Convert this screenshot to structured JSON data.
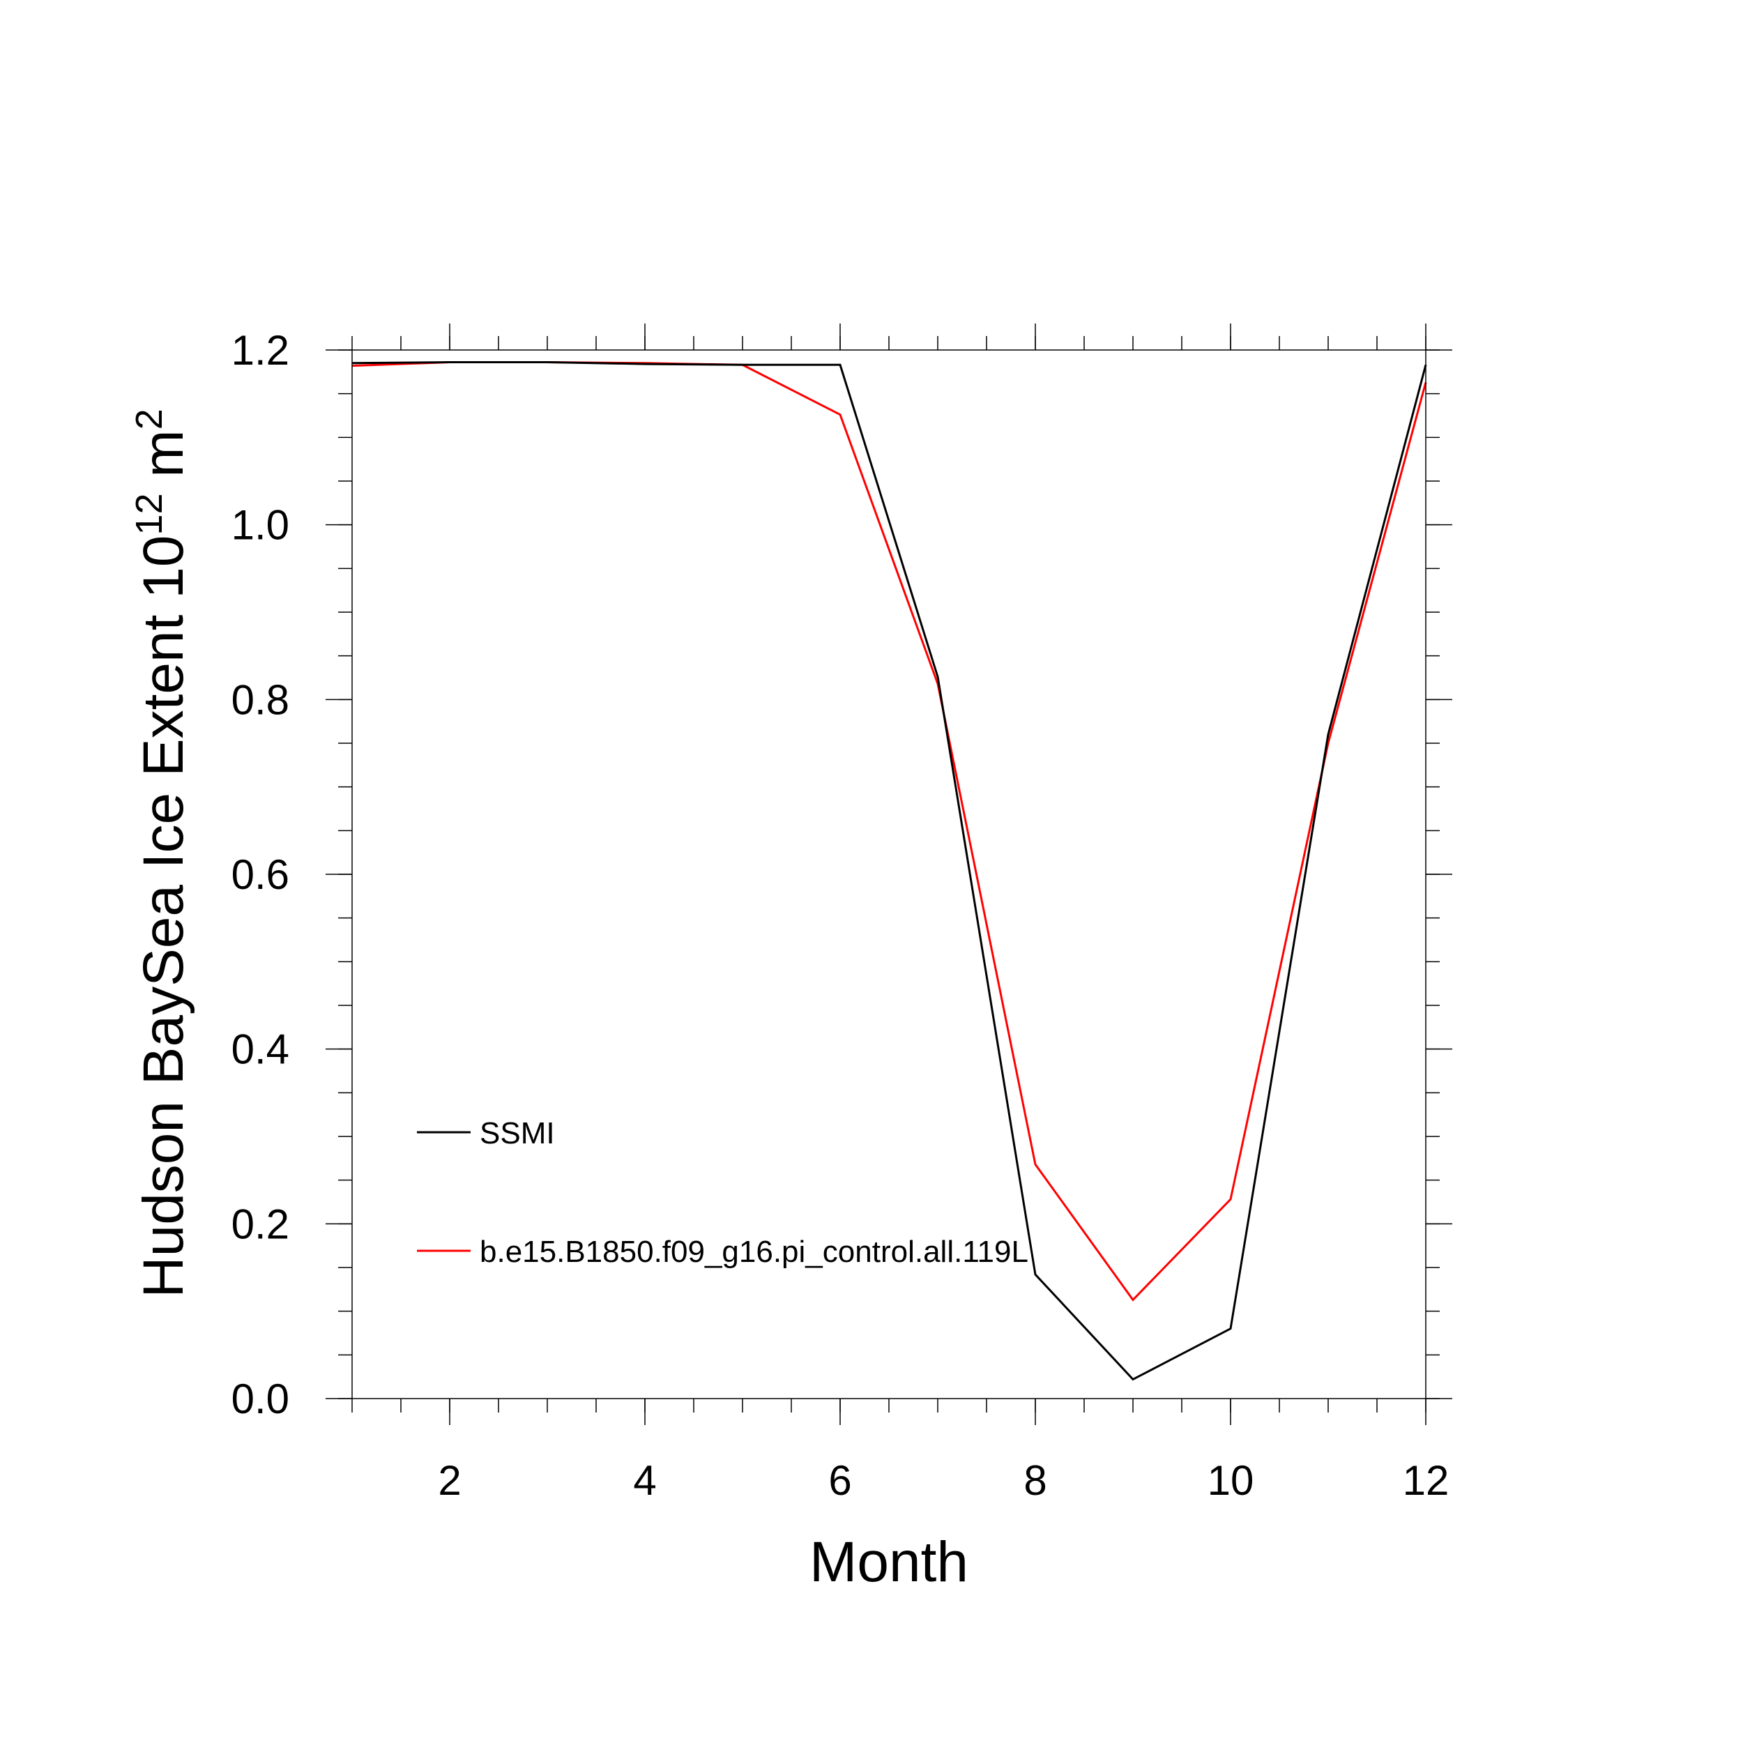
{
  "chart_data": {
    "type": "line",
    "xlabel": "Month",
    "ylabel": {
      "main": "Hudson BaySea Ice Extent 10",
      "exponent": "12",
      "unit": " m",
      "unit_exponent": "2"
    },
    "xlim": [
      1,
      12
    ],
    "ylim": [
      0.0,
      1.2
    ],
    "x_ticks": [
      2,
      4,
      6,
      8,
      10,
      12
    ],
    "x_tick_labels": [
      "2",
      "4",
      "6",
      "8",
      "10",
      "12"
    ],
    "y_ticks": [
      0.0,
      0.2,
      0.4,
      0.6,
      0.8,
      1.0,
      1.2
    ],
    "y_tick_labels": [
      "0.0",
      "0.2",
      "0.4",
      "0.6",
      "0.8",
      "1.0",
      "1.2"
    ],
    "x_minor_step": 0.5,
    "y_minor_step": 0.05,
    "grid": false,
    "legend_position": "lower-left",
    "x": [
      1,
      2,
      3,
      4,
      5,
      6,
      7,
      8,
      9,
      10,
      11,
      12
    ],
    "series": [
      {
        "name": "SSMI",
        "color": "#000000",
        "values": [
          1.185,
          1.186,
          1.186,
          1.184,
          1.183,
          1.183,
          0.826,
          0.142,
          0.022,
          0.08,
          0.76,
          1.183
        ]
      },
      {
        "name": "b.e15.B1850.f09_g16.pi_control.all.119L",
        "color": "#ff0000",
        "values": [
          1.182,
          1.186,
          1.186,
          1.185,
          1.183,
          1.126,
          0.818,
          0.268,
          0.113,
          0.228,
          0.75,
          1.163
        ]
      }
    ]
  }
}
